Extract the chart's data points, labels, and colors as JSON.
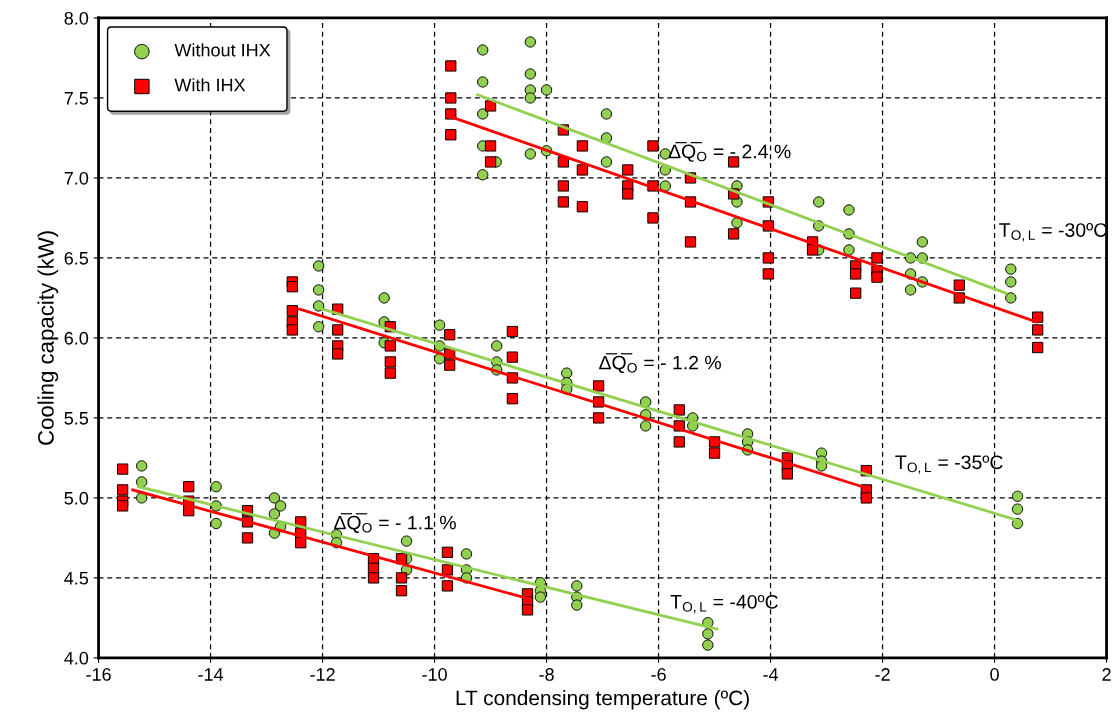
{
  "chart_data": {
    "type": "scatter",
    "xlabel": "LT condensing temperature (ºC)",
    "ylabel": "Cooling capacity (kW)",
    "xlim": [
      -16,
      2
    ],
    "xticks": [
      -16,
      -14,
      -12,
      -10,
      -8,
      -6,
      -4,
      -2,
      0,
      2
    ],
    "ylim": [
      4,
      8
    ],
    "yticks": [
      {
        "value": 4,
        "label": "4.0"
      },
      {
        "value": 4.5,
        "label": "4.5"
      },
      {
        "value": 5,
        "label": "5.0"
      },
      {
        "value": 5.5,
        "label": "5.5"
      },
      {
        "value": 6,
        "label": "6.0"
      },
      {
        "value": 6.5,
        "label": "6.5"
      },
      {
        "value": 7,
        "label": "7.0"
      },
      {
        "value": 7.5,
        "label": "7.5"
      },
      {
        "value": 8,
        "label": "8.0"
      }
    ],
    "grid": true,
    "legend": "top left",
    "series": [
      {
        "name": "Without IHX",
        "color": "#92d050",
        "marker": "circle",
        "x": [
          -9.14,
          -9.14,
          -9.14,
          -9.14,
          -9.14,
          -8.9,
          -8.29,
          -8.29,
          -8.29,
          -8.29,
          -8.29,
          -8.0,
          -8.0,
          -6.93,
          -6.93,
          -6.93,
          -5.88,
          -5.88,
          -5.88,
          -4.6,
          -4.6,
          -4.6,
          -3.14,
          -3.14,
          -3.14,
          -2.6,
          -2.6,
          -2.6,
          -1.5,
          -1.5,
          -1.5,
          -1.29,
          -1.29,
          -1.29,
          0.29,
          0.29,
          0.29,
          -12.07,
          -12.07,
          -12.07,
          -12.07,
          -10.9,
          -10.9,
          -10.9,
          -9.91,
          -9.91,
          -9.91,
          -8.89,
          -8.89,
          -8.89,
          -7.64,
          -7.64,
          -7.64,
          -6.23,
          -6.23,
          -6.23,
          -5.39,
          -5.39,
          -4.41,
          -4.41,
          -4.41,
          -3.09,
          -3.09,
          -3.09,
          0.41,
          0.41,
          0.41,
          -15.23,
          -15.23,
          -15.23,
          -13.9,
          -13.9,
          -13.9,
          -12.86,
          -12.86,
          -12.86,
          -12.75,
          -12.75,
          -11.75,
          -11.75,
          -10.5,
          -10.5,
          -10.5,
          -9.43,
          -9.43,
          -9.43,
          -8.11,
          -8.11,
          -8.11,
          -7.46,
          -7.46,
          -7.46,
          -5.12,
          -5.12,
          -5.12
        ],
        "values": [
          7.8,
          7.6,
          7.4,
          7.2,
          7.02,
          7.1,
          7.85,
          7.65,
          7.55,
          7.5,
          7.15,
          7.55,
          7.17,
          7.4,
          7.25,
          7.1,
          7.15,
          7.05,
          6.95,
          6.95,
          6.85,
          6.72,
          6.85,
          6.7,
          6.55,
          6.8,
          6.65,
          6.55,
          6.5,
          6.4,
          6.3,
          6.6,
          6.5,
          6.35,
          6.43,
          6.35,
          6.25,
          6.45,
          6.3,
          6.2,
          6.07,
          6.25,
          6.1,
          5.97,
          6.08,
          5.95,
          5.87,
          5.95,
          5.85,
          5.8,
          5.78,
          5.72,
          5.68,
          5.6,
          5.52,
          5.45,
          5.5,
          5.45,
          5.4,
          5.35,
          5.3,
          5.28,
          5.23,
          5.2,
          5.01,
          4.93,
          4.84,
          5.2,
          5.1,
          5.0,
          5.07,
          4.95,
          4.84,
          5.0,
          4.9,
          4.78,
          4.95,
          4.82,
          4.77,
          4.72,
          4.73,
          4.62,
          4.55,
          4.65,
          4.55,
          4.5,
          4.47,
          4.42,
          4.38,
          4.45,
          4.38,
          4.33,
          4.22,
          4.15,
          4.08
        ]
      },
      {
        "name": "With IHX",
        "color": "#ff0000",
        "marker": "square",
        "x": [
          -9.71,
          -9.71,
          -9.71,
          -9.71,
          -9.0,
          -9.0,
          -9.0,
          -7.7,
          -7.7,
          -7.7,
          -7.7,
          -7.36,
          -7.36,
          -7.36,
          -6.55,
          -6.55,
          -6.55,
          -6.1,
          -6.1,
          -6.1,
          -5.43,
          -5.43,
          -5.43,
          -4.66,
          -4.66,
          -4.66,
          -4.04,
          -4.04,
          -4.04,
          -4.04,
          -3.25,
          -3.25,
          -2.48,
          -2.48,
          -2.48,
          -2.1,
          -2.1,
          -2.1,
          -0.63,
          -0.63,
          0.77,
          0.77,
          0.77,
          -12.54,
          -12.54,
          -12.54,
          -12.54,
          -12.54,
          -11.73,
          -11.73,
          -11.73,
          -11.73,
          -10.79,
          -10.79,
          -10.79,
          -10.79,
          -9.73,
          -9.73,
          -9.73,
          -8.61,
          -8.61,
          -8.61,
          -8.61,
          -7.07,
          -7.07,
          -7.07,
          -5.63,
          -5.63,
          -5.63,
          -5.0,
          -5.0,
          -3.7,
          -3.7,
          -3.7,
          -2.29,
          -2.29,
          -2.29,
          -15.57,
          -15.57,
          -15.57,
          -15.57,
          -14.39,
          -14.39,
          -14.39,
          -13.34,
          -13.34,
          -13.34,
          -12.39,
          -12.39,
          -12.39,
          -11.09,
          -11.09,
          -11.09,
          -10.59,
          -10.59,
          -10.59,
          -9.77,
          -9.77,
          -9.77,
          -8.34,
          -8.34,
          -8.34
        ],
        "values": [
          7.7,
          7.5,
          7.4,
          7.27,
          7.45,
          7.2,
          7.1,
          7.3,
          7.1,
          6.95,
          6.85,
          7.2,
          7.05,
          6.82,
          7.05,
          6.95,
          6.9,
          7.2,
          6.95,
          6.75,
          7.0,
          6.85,
          6.6,
          7.1,
          6.9,
          6.65,
          6.85,
          6.7,
          6.5,
          6.4,
          6.6,
          6.55,
          6.45,
          6.4,
          6.28,
          6.5,
          6.42,
          6.38,
          6.33,
          6.25,
          6.13,
          6.05,
          5.94,
          6.35,
          6.32,
          6.17,
          6.1,
          6.05,
          6.18,
          6.05,
          5.95,
          5.9,
          6.07,
          5.95,
          5.85,
          5.78,
          6.02,
          5.9,
          5.83,
          6.04,
          5.88,
          5.75,
          5.62,
          5.7,
          5.6,
          5.5,
          5.55,
          5.45,
          5.35,
          5.35,
          5.28,
          5.25,
          5.2,
          5.15,
          5.17,
          5.05,
          5.0,
          5.18,
          5.05,
          4.98,
          4.95,
          5.07,
          4.98,
          4.92,
          4.92,
          4.85,
          4.75,
          4.85,
          4.78,
          4.72,
          4.62,
          4.56,
          4.5,
          4.62,
          4.5,
          4.42,
          4.66,
          4.55,
          4.45,
          4.4,
          4.35,
          4.3
        ]
      },
      {
        "type": "line",
        "color": "#92d050",
        "x": [
          -9.23,
          0.2
        ],
        "values": [
          7.52,
          6.28
        ]
      },
      {
        "type": "line",
        "color": "#ff0000",
        "x": [
          -9.77,
          0.75
        ],
        "values": [
          7.39,
          6.1
        ]
      },
      {
        "type": "line",
        "color": "#92d050",
        "x": [
          -12.09,
          0.41
        ],
        "values": [
          6.19,
          4.86
        ]
      },
      {
        "type": "line",
        "color": "#ff0000",
        "x": [
          -12.41,
          -2.27
        ],
        "values": [
          6.18,
          5.06
        ]
      },
      {
        "type": "line",
        "color": "#92d050",
        "x": [
          -15.29,
          -4.96
        ],
        "values": [
          5.07,
          4.18
        ]
      },
      {
        "type": "line",
        "color": "#ff0000",
        "x": [
          -15.39,
          -8.32
        ],
        "values": [
          5.05,
          4.37
        ]
      }
    ],
    "annotations": [
      "Δ̅Q̅$_{O}$ = - 2.4 %",
      "Δ̅Q̅$_{O}$ = - 1.2 %",
      "Δ̅Q̅$_{O}$ = - 1.1 %",
      "T$_{O,L}$ = -30ºC",
      "T$_{O,L}$ = -35ºC",
      "T$_{O,L}$ = -40ºC"
    ]
  }
}
